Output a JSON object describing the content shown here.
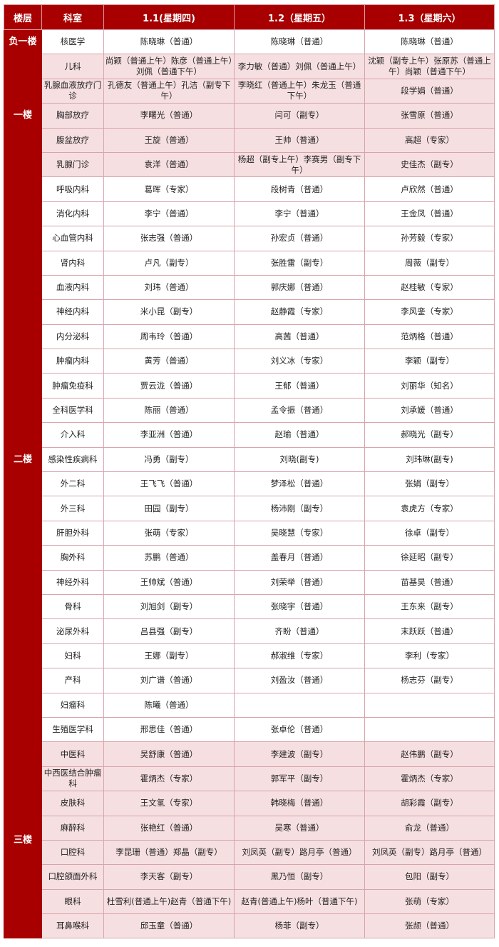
{
  "header": {
    "floor": "楼层",
    "dept": "科室",
    "days": [
      "1.1(星期四)",
      "1.2（星期五）",
      "1.3（星期六）"
    ]
  },
  "colors": {
    "header_bg": "#a80000",
    "pink_row": "#f6dfe1",
    "border": "#d9a3ab"
  },
  "floors": [
    {
      "name": "负一楼",
      "shade": "white",
      "rows": [
        [
          "核医学",
          "陈晓琳（普通）",
          "陈晓琳（普通）",
          "陈晓琳（普通）"
        ]
      ]
    },
    {
      "name": "一楼",
      "shade": "pink",
      "rows": [
        [
          "儿科",
          "尚颖（普通上午）陈彦（普通上午）刘佩（普通下午）",
          "李力敏（普通）刘佩（普通上午）",
          "沈颖（副专上午）张原苏（普通上午）尚颖（普通下午）"
        ],
        [
          "乳腺血液放疗门诊",
          "孔德友（普通上午）孔洁（副专下午）",
          "李晓红（普通上午）朱龙玉（普通下午）",
          "段学娟（普通）"
        ],
        [
          "胸部放疗",
          "李曙光（普通）",
          "闫可（副专）",
          "张雪原（普通）"
        ],
        [
          "腹盆放疗",
          "王旋（普通）",
          "王帅（普通）",
          "高超（专家）"
        ],
        [
          "乳腺门诊",
          "袁洋（普通）",
          "杨超（副专上午）李赛男（副专下午）",
          "史佳杰（副专）"
        ]
      ]
    },
    {
      "name": "二楼",
      "shade": "white",
      "rows": [
        [
          "呼吸内科",
          "葛晖（专家）",
          "段树青（普通）",
          "卢欣然（普通）"
        ],
        [
          "消化内科",
          "李宁（普通）",
          "李宁（普通）",
          "王金凤（普通）"
        ],
        [
          "心血管内科",
          "张志强（普通）",
          "孙宏贞（普通）",
          "孙芳毅（专家）"
        ],
        [
          "肾内科",
          "卢凡（副专）",
          "张胜雷（副专）",
          "周薇（副专）"
        ],
        [
          "血液内科",
          "刘玮（普通）",
          "郭庆娜（普通）",
          "赵桂敏（专家）"
        ],
        [
          "神经内科",
          "米小昆（副专）",
          "赵静霞（专家）",
          "李风銮（专家）"
        ],
        [
          "内分泌科",
          "周韦玲（普通）",
          "高茜（普通）",
          "范炳格（普通）"
        ],
        [
          "肿瘤内科",
          "黄芳（普通）",
          "刘义冰（专家）",
          "李颖（副专）"
        ],
        [
          "肿瘤免疫科",
          "贾云泷（普通）",
          "王郁（普通）",
          "刘丽华（知名）"
        ],
        [
          "全科医学科",
          "陈丽（普通）",
          "孟令振（普通）",
          "刘承媛（普通）"
        ],
        [
          "介入科",
          "李亚洲（普通）",
          "赵瑜（普通）",
          "郝晓光（副专）"
        ],
        [
          "感染性疾病科",
          "冯勇（副专）",
          "刘晓(副专)",
          "刘玮琳(副专)"
        ],
        [
          "外二科",
          "王飞飞（普通）",
          "梦泽松（普通）",
          "张娟（副专）"
        ],
        [
          "外三科",
          "田园（副专）",
          "杨沛刚（副专）",
          "袁虎方（专家）"
        ],
        [
          "肝胆外科",
          "张萌（专家）",
          "吴晓慧（专家）",
          "徐卓（副专）"
        ],
        [
          "胸外科",
          "苏鹏（普通）",
          "盖春月（普通）",
          "徐延昭（副专）"
        ],
        [
          "神经外科",
          "王帅斌（普通）",
          "刘荣举（普通）",
          "苗基昊（普通）"
        ],
        [
          "骨科",
          "刘旭剑（副专）",
          "张晓宇（普通）",
          "王东来（副专）"
        ],
        [
          "泌尿外科",
          "吕县强（副专）",
          "齐盼（普通）",
          "末跃跃（普通）"
        ],
        [
          "妇科",
          "王娜（副专）",
          "郝淑维（专家）",
          "李利（专家）"
        ],
        [
          "产科",
          "刘广谱（普通）",
          "刘盈汝（普通）",
          "杨志芬（副专）"
        ],
        [
          "妇瘤科",
          "陈曦（普通）",
          "",
          ""
        ],
        [
          "生殖医学科",
          "邢思佳（普通）",
          "张卓伦（普通）",
          ""
        ]
      ]
    },
    {
      "name": "三楼",
      "shade": "pink",
      "rows": [
        [
          "中医科",
          "吴舒康（普通）",
          "李建波（副专）",
          "赵伟鹏（副专）"
        ],
        [
          "中西医结合肿瘤科",
          "霍炳杰（专家）",
          "郭军平（副专）",
          "霍炳杰（专家）"
        ],
        [
          "皮肤科",
          "王文氢（专家）",
          "韩晓梅（普通）",
          "胡彩霞（副专）"
        ],
        [
          "麻醉科",
          "张艳红（普通）",
          "吴寒（普通）",
          "俞龙（普通）"
        ],
        [
          "口腔科",
          "李昆珊（普通）郑晶（副专）",
          "刘凤英（副专）路月亭（普通）",
          "刘凤英（副专）路月亭（普通）"
        ],
        [
          "口腔颌面外科",
          "李天客（副专）",
          "黑乃恒（副专）",
          "包阳（副专）"
        ],
        [
          "眼科",
          "杜雪利(普通上午)赵青（普通下午)",
          "赵青(普通上午)杨叶（普通下午)",
          "张萌（专家）"
        ],
        [
          "耳鼻喉科",
          "邱玉童（普通）",
          "杨菲（副专）",
          "张颉（普通）"
        ]
      ]
    }
  ]
}
